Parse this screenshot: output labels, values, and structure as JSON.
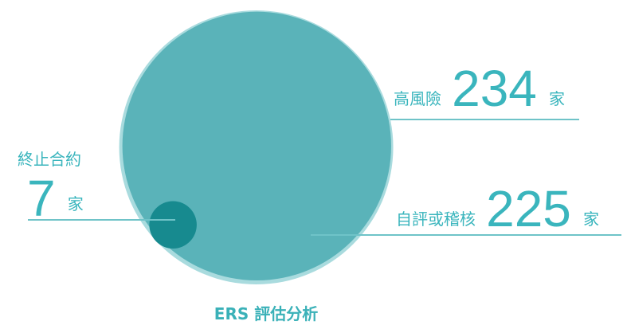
{
  "chart_data": {
    "type": "bubble",
    "title": "ERS 評估分析",
    "categories": [
      "高風險",
      "自評或稽核",
      "終止合約"
    ],
    "values": [
      234,
      225,
      7
    ],
    "unit": "家",
    "colors": [
      "#a9dbde",
      "#5ab3b9",
      "#178a8f"
    ]
  }
}
